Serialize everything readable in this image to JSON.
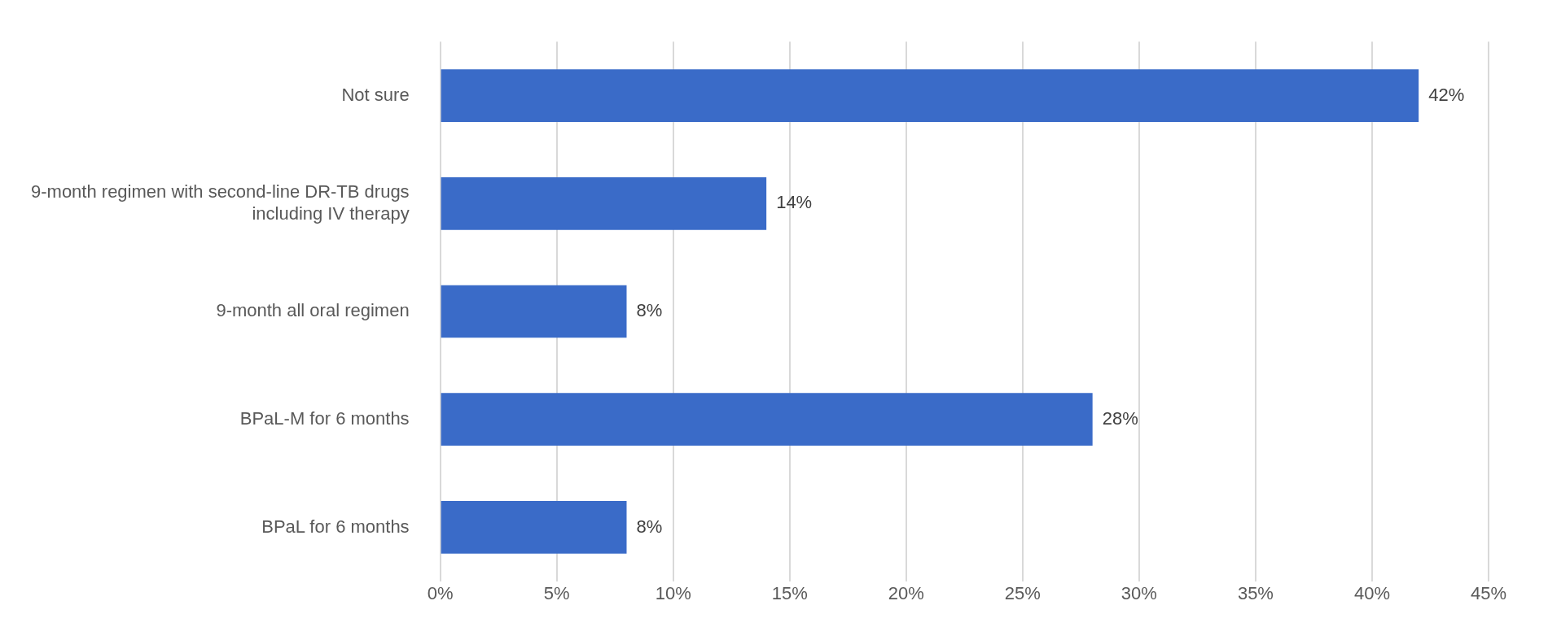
{
  "chart_data": {
    "type": "bar",
    "orientation": "horizontal",
    "categories": [
      "Not sure",
      "9-month regimen with second-line DR-TB drugs including IV therapy",
      "9-month all oral regimen",
      "BPaL-M for 6 months",
      "BPaL for 6 months"
    ],
    "values": [
      42,
      14,
      8,
      28,
      8
    ],
    "value_labels": [
      "42%",
      "14%",
      "8%",
      "28%",
      "8%"
    ],
    "color": "#3a6bc8",
    "xlim": [
      0,
      45
    ],
    "xticks": [
      {
        "value": 0,
        "label": "0%"
      },
      {
        "value": 5,
        "label": "5%"
      },
      {
        "value": 10,
        "label": "10%"
      },
      {
        "value": 15,
        "label": "15%"
      },
      {
        "value": 20,
        "label": "20%"
      },
      {
        "value": 25,
        "label": "25%"
      },
      {
        "value": 30,
        "label": "30%"
      },
      {
        "value": 35,
        "label": "35%"
      },
      {
        "value": 40,
        "label": "40%"
      },
      {
        "value": 45,
        "label": "45%"
      }
    ],
    "grid": "x",
    "legend": false
  }
}
